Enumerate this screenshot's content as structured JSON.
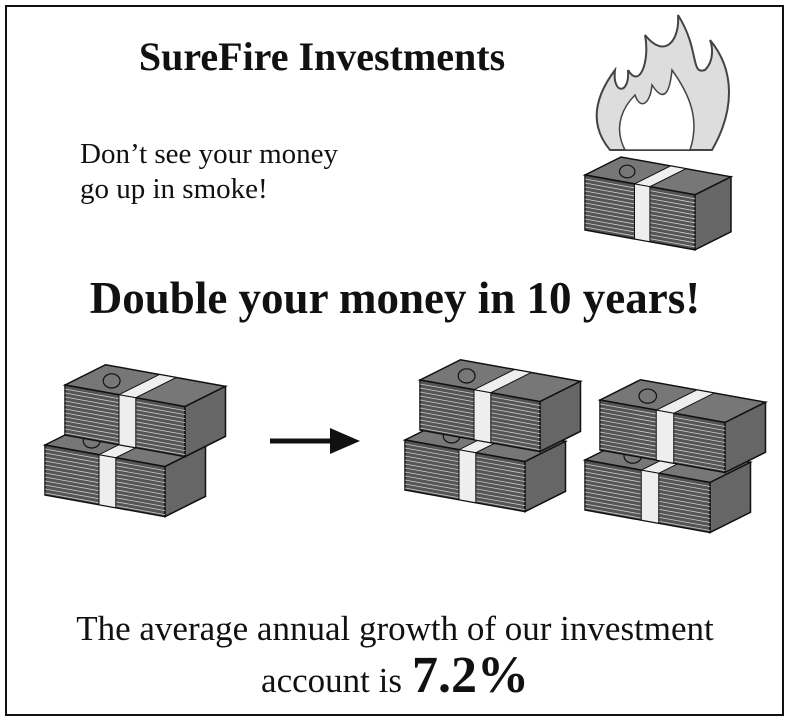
{
  "header": {
    "title": "SureFire Investments"
  },
  "tagline": {
    "lines": [
      "Don’t see your money",
      "go up in smoke!"
    ]
  },
  "headline": "Double your money in 10 years!",
  "footer": {
    "line1": "The average annual growth of our investment",
    "line2": "account is",
    "rate": "7.2%"
  }
}
